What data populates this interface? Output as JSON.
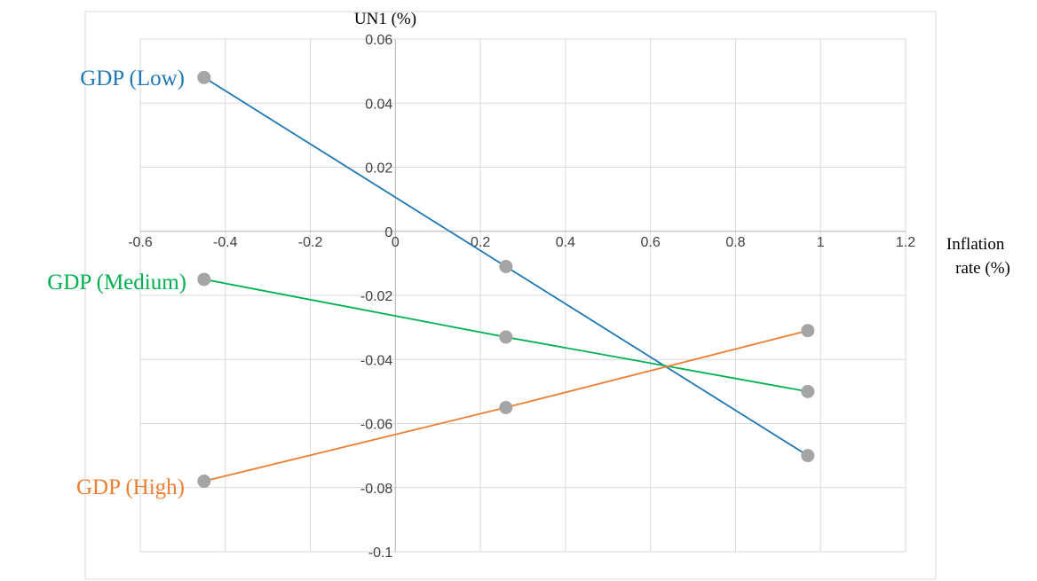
{
  "chart_data": {
    "type": "line",
    "xlabel": "Inflation rate (%)",
    "xlabel_lines": [
      "Inflation",
      "rate (%)"
    ],
    "ylabel": "UN1 (%)",
    "xlim": [
      -0.6,
      1.2
    ],
    "ylim": [
      -0.1,
      0.06
    ],
    "xticks": [
      -0.6,
      -0.4,
      -0.2,
      0,
      0.2,
      0.4,
      0.6,
      0.8,
      1,
      1.2
    ],
    "yticks": [
      0.06,
      0.04,
      0.02,
      0,
      -0.02,
      -0.04,
      -0.06,
      -0.08,
      -0.1
    ],
    "xtick_labels": [
      "-0.6",
      "-0.4",
      "-0.2",
      "0",
      "0.2",
      "0.4",
      "0.6",
      "0.8",
      "1",
      "1.2"
    ],
    "ytick_labels": [
      "0.06",
      "0.04",
      "0.02",
      "0",
      "-0.02",
      "-0.04",
      "-0.06",
      "-0.08",
      "-0.1"
    ],
    "grid": true,
    "marker_color": "#a5a5a5",
    "series": [
      {
        "name": "GDP (Low)",
        "color": "#1f77b4",
        "x": [
          -0.45,
          0.26,
          0.97
        ],
        "y": [
          0.048,
          -0.011,
          -0.07
        ]
      },
      {
        "name": "GDP (Medium)",
        "color": "#00b050",
        "x": [
          -0.45,
          0.26,
          0.97
        ],
        "y": [
          -0.015,
          -0.033,
          -0.05
        ]
      },
      {
        "name": "GDP (High)",
        "color": "#ed7d31",
        "x": [
          -0.45,
          0.26,
          0.97
        ],
        "y": [
          -0.078,
          -0.055,
          -0.031
        ]
      }
    ]
  }
}
